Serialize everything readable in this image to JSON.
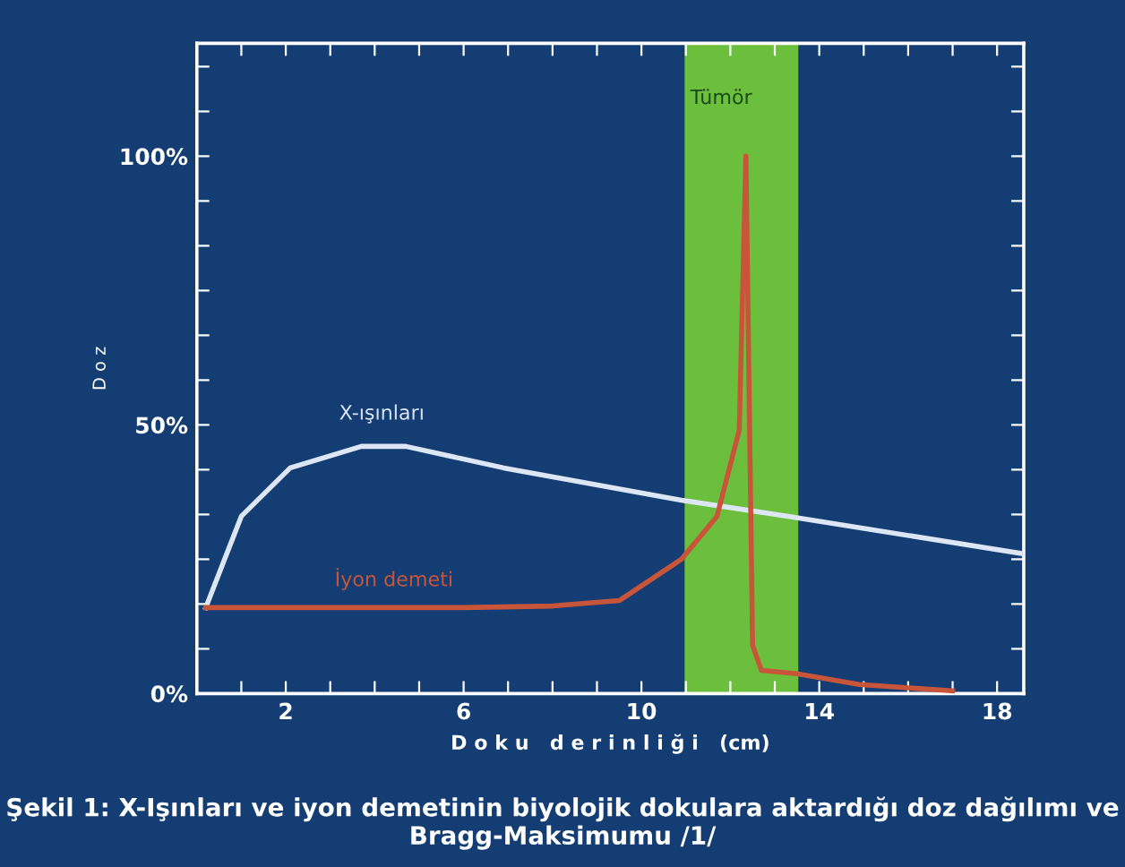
{
  "chart_data": {
    "type": "line",
    "xlabel": "D o k u   d e r i n l i ğ i   (cm)",
    "ylabel": "D o z",
    "xlim": [
      0,
      18.6
    ],
    "ylim": [
      0,
      121
    ],
    "xticks": [
      {
        "value": 1,
        "label": null
      },
      2,
      {
        "value": 3,
        "label": null
      },
      {
        "value": 4,
        "label": null
      },
      {
        "value": 5,
        "label": null
      },
      6,
      {
        "value": 7,
        "label": null
      },
      {
        "value": 8,
        "label": null
      },
      {
        "value": 9,
        "label": null
      },
      10,
      {
        "value": 11,
        "label": null
      },
      {
        "value": 12,
        "label": null
      },
      {
        "value": 13,
        "label": null
      },
      14,
      {
        "value": 15,
        "label": null
      },
      {
        "value": 16,
        "label": null
      },
      {
        "value": 17,
        "label": null
      },
      18
    ],
    "yticks": [
      {
        "value": 0,
        "label": "0%"
      },
      {
        "value": 8.33,
        "label": null
      },
      {
        "value": 16.67,
        "label": null
      },
      {
        "value": 25,
        "label": null
      },
      {
        "value": 33.33,
        "label": null
      },
      {
        "value": 41.67,
        "label": null
      },
      {
        "value": 50,
        "label": "50%"
      },
      {
        "value": 58.33,
        "label": null
      },
      {
        "value": 66.67,
        "label": null
      },
      {
        "value": 75,
        "label": null
      },
      {
        "value": 83.33,
        "label": null
      },
      {
        "value": 91.67,
        "label": null
      },
      {
        "value": 100,
        "label": "100%"
      },
      {
        "value": 108.33,
        "label": null
      },
      {
        "value": 116.67,
        "label": null
      }
    ],
    "grid": false,
    "legend": false,
    "marker": "none",
    "line_style": "solid",
    "bands": [
      {
        "axis": "x",
        "from": 11,
        "to": 13.5,
        "label": "Tümör",
        "color": "#6cbf3c"
      }
    ],
    "series": [
      {
        "name": "X-ışınları",
        "color": "#dde6f5",
        "x": [
          0.2,
          1.0,
          2.1,
          3.7,
          4.7,
          6.9,
          10.9,
          13.3,
          18.6
        ],
        "values": [
          16,
          33,
          42,
          46,
          46,
          42,
          36,
          33,
          26
        ]
      },
      {
        "name": "İyon demeti",
        "color": "#c8553a",
        "x": [
          0.2,
          3,
          6,
          8,
          9.5,
          10.9,
          11.7,
          12.2,
          12.35,
          12.5,
          12.7,
          13.5,
          14.9,
          17
        ],
        "values": [
          16,
          16,
          16,
          16.3,
          17.3,
          25,
          33,
          49,
          100,
          9,
          4.3,
          3.7,
          1.7,
          0.5
        ]
      }
    ],
    "annotations": [
      "Şekil 1: X-Işınları ve iyon demetinin biyolojik dokulara aktardığı doz dağılımı ve Bragg-Maksimumu /1/"
    ]
  }
}
